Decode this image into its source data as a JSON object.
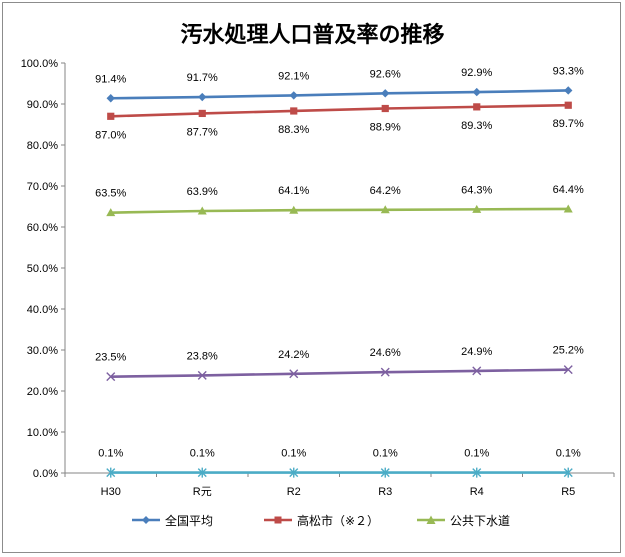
{
  "chart_data": {
    "type": "line",
    "title": "汚水処理人口普及率の推移",
    "categories": [
      "H30",
      "R元",
      "R2",
      "R3",
      "R4",
      "R5"
    ],
    "ylim": [
      0,
      100
    ],
    "y_tick_step": 10,
    "y_tick_labels": [
      "0.0%",
      "10.0%",
      "20.0%",
      "30.0%",
      "40.0%",
      "50.0%",
      "60.0%",
      "70.0%",
      "80.0%",
      "90.0%",
      "100.0%"
    ],
    "grid": false,
    "legend_position": "bottom",
    "series": [
      {
        "name": "全国平均",
        "values": [
          91.4,
          91.7,
          92.1,
          92.6,
          92.9,
          93.3
        ],
        "labels": [
          "91.4%",
          "91.7%",
          "92.1%",
          "92.6%",
          "92.9%",
          "93.3%"
        ],
        "color": "#4a7ebb",
        "marker": "diamond",
        "label_side": "above",
        "in_legend": true
      },
      {
        "name": "高松市（※２）",
        "values": [
          87.0,
          87.7,
          88.3,
          88.9,
          89.3,
          89.7
        ],
        "labels": [
          "87.0%",
          "87.7%",
          "88.3%",
          "88.9%",
          "89.3%",
          "89.7%"
        ],
        "color": "#be4b48",
        "marker": "square",
        "label_side": "below",
        "in_legend": true
      },
      {
        "name": "公共下水道",
        "values": [
          63.5,
          63.9,
          64.1,
          64.2,
          64.3,
          64.4
        ],
        "labels": [
          "63.5%",
          "63.9%",
          "64.1%",
          "64.2%",
          "64.3%",
          "64.4%"
        ],
        "color": "#98b954",
        "marker": "triangle",
        "label_side": "above",
        "in_legend": true
      },
      {
        "name": "",
        "values": [
          23.5,
          23.8,
          24.2,
          24.6,
          24.9,
          25.2
        ],
        "labels": [
          "23.5%",
          "23.8%",
          "24.2%",
          "24.6%",
          "24.9%",
          "25.2%"
        ],
        "color": "#7d60a0",
        "marker": "x",
        "label_side": "above",
        "in_legend": false
      },
      {
        "name": "",
        "values": [
          0.1,
          0.1,
          0.1,
          0.1,
          0.1,
          0.1
        ],
        "labels": [
          "0.1%",
          "0.1%",
          "0.1%",
          "0.1%",
          "0.1%",
          "0.1%"
        ],
        "color": "#4bacc6",
        "marker": "star",
        "label_side": "above",
        "in_legend": false
      }
    ]
  }
}
